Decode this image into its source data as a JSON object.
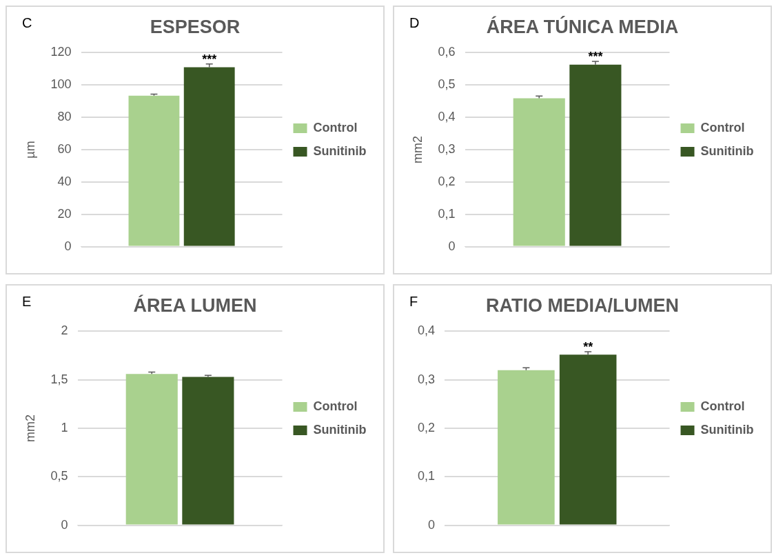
{
  "chart_data": [
    {
      "type": "bar",
      "title": "ESPESOR",
      "ylabel": "µm",
      "categories": [
        null
      ],
      "annotations": [
        "C"
      ],
      "series": [
        {
          "name": "Control",
          "color": "#a9d18e",
          "values": [
            93.4
          ],
          "errors": [
            [
              93.4,
              94.4
            ]
          ]
        },
        {
          "name": "Sunitinib",
          "color": "#385723",
          "values": [
            111
          ],
          "errors": [
            [
              111,
              113
            ]
          ],
          "value_labels": [
            "***"
          ]
        }
      ],
      "ylim": [
        0,
        120
      ],
      "yticks": [
        0,
        20,
        40,
        60,
        80,
        100,
        120
      ],
      "grid": "y",
      "legend": "right"
    },
    {
      "type": "bar",
      "title": "ÁREA TÚNICA MEDIA",
      "ylabel": "mm2",
      "categories": [
        null
      ],
      "annotations": [
        "D"
      ],
      "series": [
        {
          "name": "Control",
          "color": "#a9d18e",
          "values": [
            0.459
          ],
          "errors": [
            [
              0.459,
              0.466
            ]
          ]
        },
        {
          "name": "Sunitinib",
          "color": "#385723",
          "values": [
            0.563
          ],
          "errors": [
            [
              0.563,
              0.573
            ]
          ],
          "value_labels": [
            "***"
          ]
        }
      ],
      "ylim": [
        0,
        0.6
      ],
      "yticks": [
        0,
        {
          "value": 0.1,
          "label": "0,1"
        },
        {
          "value": 0.2,
          "label": "0,2"
        },
        {
          "value": 0.3,
          "label": "0,3"
        },
        {
          "value": 0.4,
          "label": "0,4"
        },
        {
          "value": 0.5,
          "label": "0,5"
        },
        {
          "value": 0.6,
          "label": "0,6"
        }
      ],
      "grid": "y",
      "legend": "right"
    },
    {
      "type": "bar",
      "title": "ÁREA LUMEN",
      "ylabel": "mm2",
      "categories": [
        null
      ],
      "annotations": [
        "E"
      ],
      "series": [
        {
          "name": "Control",
          "color": "#a9d18e",
          "values": [
            1.56
          ],
          "errors": [
            [
              1.56,
              1.58
            ]
          ]
        },
        {
          "name": "Sunitinib",
          "color": "#385723",
          "values": [
            1.53
          ],
          "errors": [
            [
              1.53,
              1.545
            ]
          ]
        }
      ],
      "ylim": [
        0,
        2
      ],
      "yticks": [
        0,
        {
          "value": 0.5,
          "label": "0,5"
        },
        1,
        {
          "value": 1.5,
          "label": "1,5"
        },
        2
      ],
      "grid": "y",
      "legend": "right"
    },
    {
      "type": "bar",
      "title": "RATIO MEDIA/LUMEN",
      "categories": [
        null
      ],
      "annotations": [
        "F"
      ],
      "series": [
        {
          "name": "Control",
          "color": "#a9d18e",
          "values": [
            0.32
          ],
          "errors": [
            [
              0.32,
              0.325
            ]
          ]
        },
        {
          "name": "Sunitinib",
          "color": "#385723",
          "values": [
            0.352
          ],
          "errors": [
            [
              0.352,
              0.358
            ]
          ],
          "value_labels": [
            "**"
          ]
        }
      ],
      "ylim": [
        0,
        0.4
      ],
      "yticks": [
        0,
        {
          "value": 0.1,
          "label": "0,1"
        },
        {
          "value": 0.2,
          "label": "0,2"
        },
        {
          "value": 0.3,
          "label": "0,3"
        },
        {
          "value": 0.4,
          "label": "0,4"
        }
      ],
      "grid": "y",
      "legend": "right"
    }
  ]
}
